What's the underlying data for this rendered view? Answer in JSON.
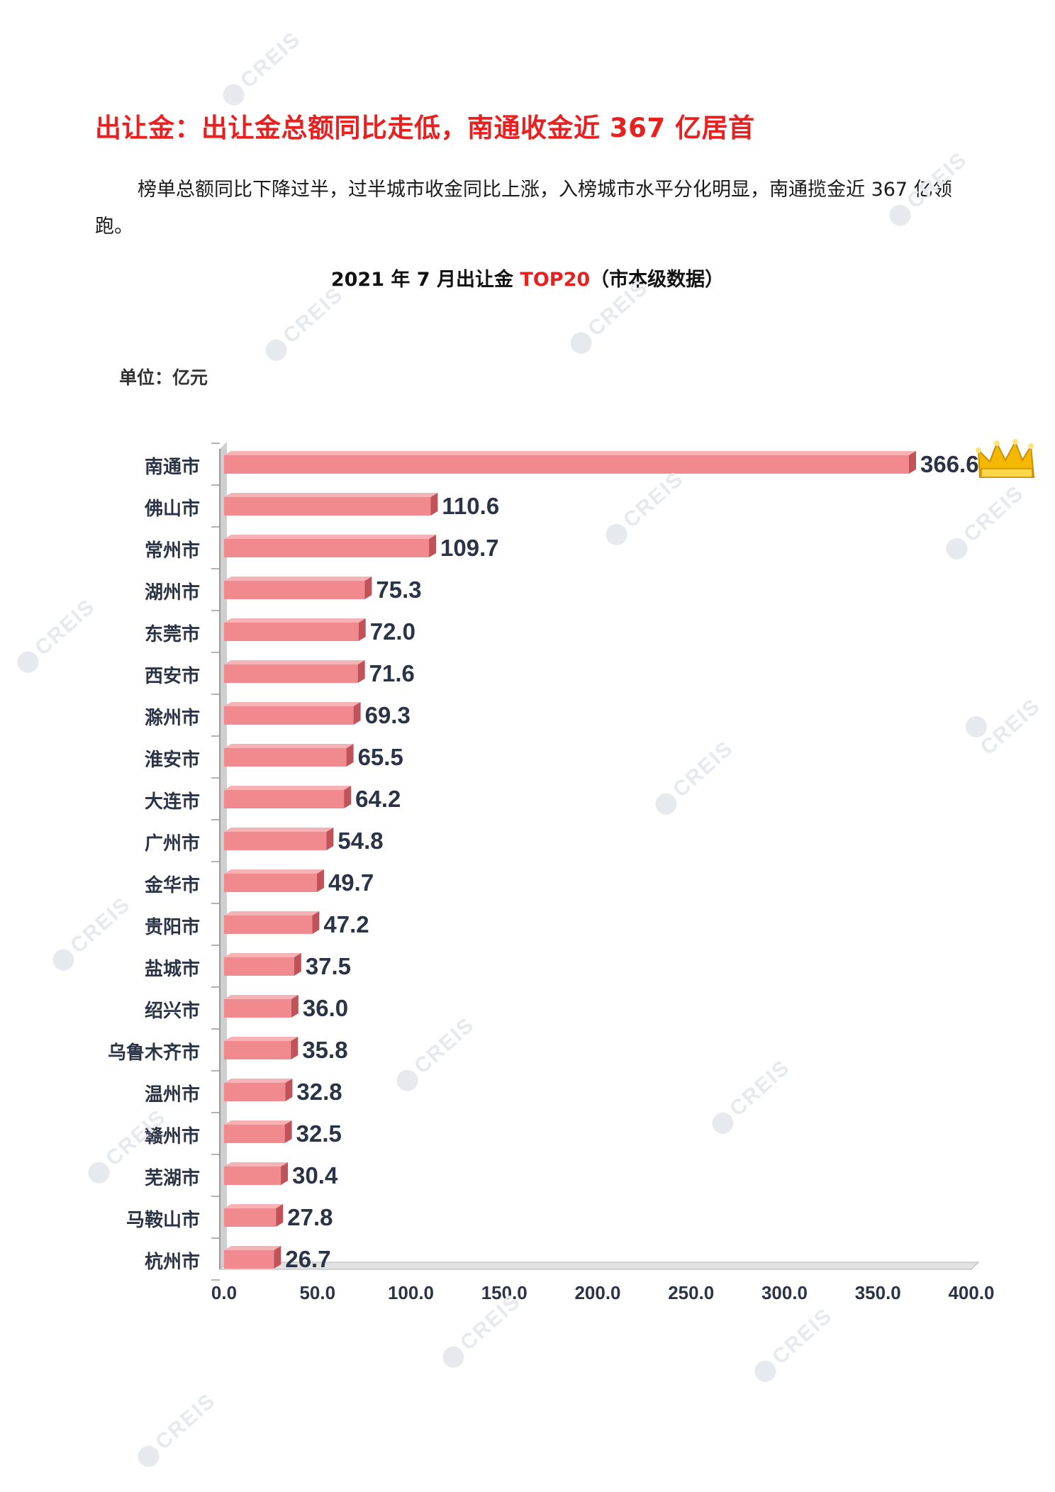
{
  "heading": "出让金：出让金总额同比走低，南通收金近 367 亿居首",
  "paragraph": "榜单总额同比下降过半，过半城市收金同比上涨，入榜城市水平分化明显，南通揽金近 367 亿领跑。",
  "chart_title_part1": "2021 年 7 月出让金 ",
  "chart_title_highlight": "TOP20",
  "chart_title_part2": "（市本级数据）",
  "unit_label": "单位：亿元",
  "watermark": "CREIS",
  "chart_data": {
    "type": "bar",
    "orientation": "horizontal",
    "categories": [
      "南通市",
      "佛山市",
      "常州市",
      "湖州市",
      "东莞市",
      "西安市",
      "滁州市",
      "淮安市",
      "大连市",
      "广州市",
      "金华市",
      "贵阳市",
      "盐城市",
      "绍兴市",
      "乌鲁木齐市",
      "温州市",
      "赣州市",
      "芜湖市",
      "马鞍山市",
      "杭州市"
    ],
    "values": [
      366.6,
      110.6,
      109.7,
      75.3,
      72.0,
      71.6,
      69.3,
      65.5,
      64.2,
      54.8,
      49.7,
      47.2,
      37.5,
      36.0,
      35.8,
      32.8,
      32.5,
      30.4,
      27.8,
      26.7
    ],
    "value_labels": [
      "366.6",
      "110.6",
      "109.7",
      "75.3",
      "72.0",
      "71.6",
      "69.3",
      "65.5",
      "64.2",
      "54.8",
      "49.7",
      "47.2",
      "37.5",
      "36.0",
      "35.8",
      "32.8",
      "32.5",
      "30.4",
      "27.8",
      "26.7"
    ],
    "x_ticks": [
      "0.0",
      "50.0",
      "100.0",
      "150.0",
      "200.0",
      "250.0",
      "300.0",
      "350.0",
      "400.0"
    ],
    "xlim": [
      0,
      400
    ],
    "bar_color": "#f08a8f",
    "bar_side_color": "#c0535a",
    "axis_wall_color": "#cfcfcf",
    "crown_icon": "crown-icon",
    "crown_color": "#f5b800",
    "grid": false,
    "legend": "none"
  }
}
